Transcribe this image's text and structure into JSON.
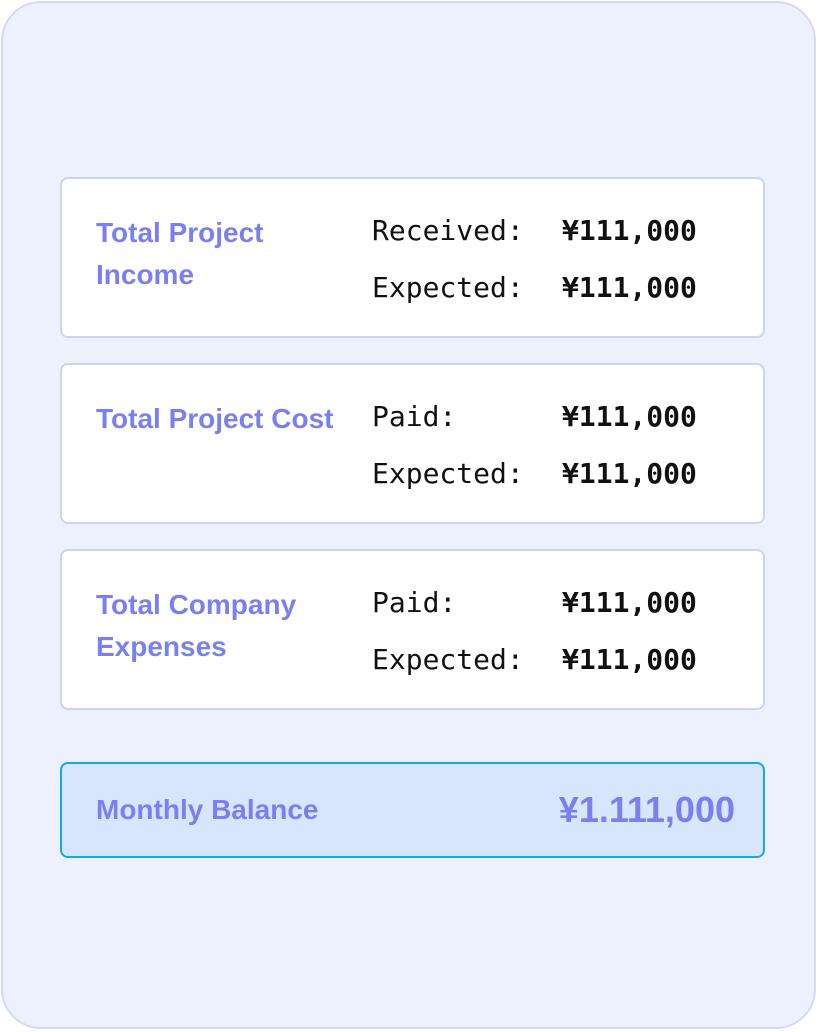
{
  "cards": [
    {
      "title": "Total Project Income",
      "rows": [
        {
          "label": "Received:",
          "value": "¥111,000"
        },
        {
          "label": "Expected:",
          "value": "¥111,000"
        }
      ]
    },
    {
      "title": "Total Project Cost",
      "rows": [
        {
          "label": "Paid:",
          "value": "¥111,000"
        },
        {
          "label": "Expected:",
          "value": "¥111,000"
        }
      ]
    },
    {
      "title": "Total Company Expenses",
      "rows": [
        {
          "label": "Paid:",
          "value": "¥111,000"
        },
        {
          "label": "Expected:",
          "value": "¥111,000"
        }
      ]
    }
  ],
  "balance": {
    "label": "Monthly Balance",
    "value": "¥1.111,000"
  },
  "colors": {
    "accent": "#7b80f0",
    "panel_background": "#edf0fd",
    "balance_background": "#d7e6fd",
    "balance_border": "#16a6ea"
  }
}
